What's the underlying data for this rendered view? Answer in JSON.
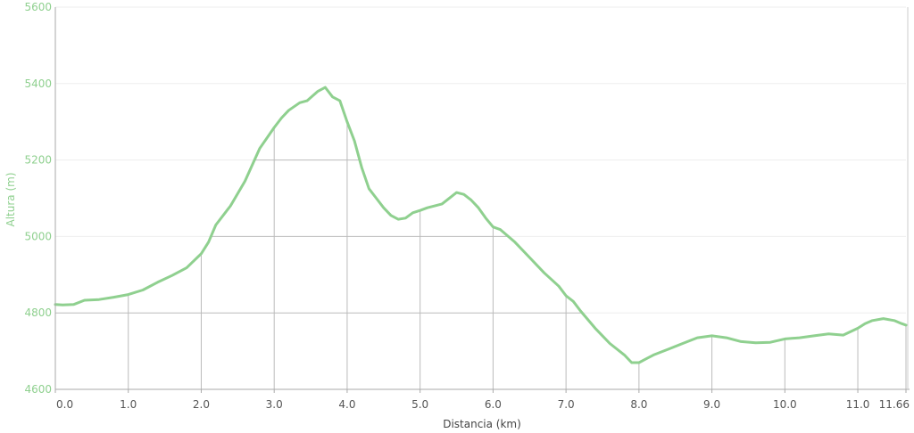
{
  "chart_data": {
    "type": "area",
    "title": "",
    "xlabel": "Distancia (km)",
    "ylabel": "Altura (m)",
    "xlim": [
      0,
      11.66
    ],
    "ylim": [
      4600,
      5600
    ],
    "x_ticks": [
      "0.0",
      "1.0",
      "2.0",
      "3.0",
      "4.0",
      "5.0",
      "6.0",
      "7.0",
      "8.0",
      "9.0",
      "10.0",
      "11.0",
      "11.66"
    ],
    "y_ticks": [
      "4600",
      "4800",
      "5000",
      "5200",
      "5400",
      "5600"
    ],
    "line_color": "#8fd08f",
    "fill_color": "#ffffff",
    "grid": true,
    "series": [
      {
        "x": [
          0.0,
          0.1,
          0.25,
          0.4,
          0.6,
          0.8,
          1.0,
          1.2,
          1.4,
          1.6,
          1.8,
          2.0,
          2.1,
          2.2,
          2.4,
          2.6,
          2.8,
          3.0,
          3.1,
          3.2,
          3.35,
          3.45,
          3.6,
          3.7,
          3.8,
          3.9,
          4.0,
          4.1,
          4.2,
          4.3,
          4.4,
          4.5,
          4.6,
          4.7,
          4.8,
          4.9,
          5.0,
          5.1,
          5.3,
          5.5,
          5.6,
          5.7,
          5.8,
          5.9,
          6.0,
          6.1,
          6.3,
          6.5,
          6.7,
          6.9,
          7.0,
          7.1,
          7.2,
          7.4,
          7.6,
          7.8,
          7.9,
          8.0,
          8.1,
          8.2,
          8.4,
          8.6,
          8.8,
          9.0,
          9.2,
          9.4,
          9.6,
          9.8,
          10.0,
          10.2,
          10.4,
          10.6,
          10.8,
          11.0,
          11.1,
          11.2,
          11.35,
          11.5,
          11.6,
          11.66
        ],
        "values": [
          4822,
          4821,
          4822,
          4833,
          4835,
          4841,
          4848,
          4860,
          4880,
          4898,
          4918,
          4955,
          4985,
          5030,
          5080,
          5145,
          5230,
          5285,
          5310,
          5330,
          5350,
          5355,
          5380,
          5390,
          5365,
          5355,
          5300,
          5250,
          5180,
          5125,
          5100,
          5075,
          5055,
          5045,
          5048,
          5062,
          5068,
          5075,
          5085,
          5115,
          5110,
          5095,
          5075,
          5048,
          5025,
          5018,
          4985,
          4945,
          4905,
          4870,
          4845,
          4830,
          4805,
          4760,
          4720,
          4690,
          4670,
          4670,
          4680,
          4690,
          4705,
          4720,
          4735,
          4740,
          4735,
          4725,
          4722,
          4723,
          4732,
          4735,
          4740,
          4745,
          4742,
          4760,
          4772,
          4780,
          4785,
          4780,
          4772,
          4768
        ]
      }
    ]
  }
}
